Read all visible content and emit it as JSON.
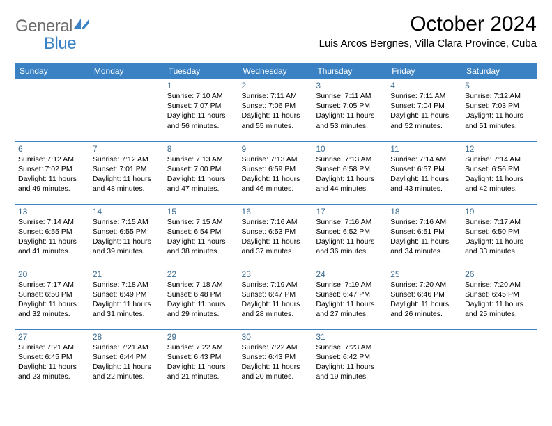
{
  "logo": {
    "text_general": "General",
    "text_blue": "Blue",
    "icon_color": "#3b82c4"
  },
  "title": "October 2024",
  "location": "Luis Arcos Bergnes, Villa Clara Province, Cuba",
  "colors": {
    "header_bg": "#3b82c4",
    "header_text": "#ffffff",
    "daynum": "#3b6b8f",
    "body_text": "#000000",
    "divider": "#3b82c4",
    "background": "#ffffff"
  },
  "typography": {
    "title_fontsize": 30,
    "location_fontsize": 15,
    "header_fontsize": 12,
    "daynum_fontsize": 12,
    "info_fontsize": 10.5
  },
  "day_headers": [
    "Sunday",
    "Monday",
    "Tuesday",
    "Wednesday",
    "Thursday",
    "Friday",
    "Saturday"
  ],
  "weeks": [
    [
      null,
      null,
      {
        "n": "1",
        "sr": "Sunrise: 7:10 AM",
        "ss": "Sunset: 7:07 PM",
        "d1": "Daylight: 11 hours",
        "d2": "and 56 minutes."
      },
      {
        "n": "2",
        "sr": "Sunrise: 7:11 AM",
        "ss": "Sunset: 7:06 PM",
        "d1": "Daylight: 11 hours",
        "d2": "and 55 minutes."
      },
      {
        "n": "3",
        "sr": "Sunrise: 7:11 AM",
        "ss": "Sunset: 7:05 PM",
        "d1": "Daylight: 11 hours",
        "d2": "and 53 minutes."
      },
      {
        "n": "4",
        "sr": "Sunrise: 7:11 AM",
        "ss": "Sunset: 7:04 PM",
        "d1": "Daylight: 11 hours",
        "d2": "and 52 minutes."
      },
      {
        "n": "5",
        "sr": "Sunrise: 7:12 AM",
        "ss": "Sunset: 7:03 PM",
        "d1": "Daylight: 11 hours",
        "d2": "and 51 minutes."
      }
    ],
    [
      {
        "n": "6",
        "sr": "Sunrise: 7:12 AM",
        "ss": "Sunset: 7:02 PM",
        "d1": "Daylight: 11 hours",
        "d2": "and 49 minutes."
      },
      {
        "n": "7",
        "sr": "Sunrise: 7:12 AM",
        "ss": "Sunset: 7:01 PM",
        "d1": "Daylight: 11 hours",
        "d2": "and 48 minutes."
      },
      {
        "n": "8",
        "sr": "Sunrise: 7:13 AM",
        "ss": "Sunset: 7:00 PM",
        "d1": "Daylight: 11 hours",
        "d2": "and 47 minutes."
      },
      {
        "n": "9",
        "sr": "Sunrise: 7:13 AM",
        "ss": "Sunset: 6:59 PM",
        "d1": "Daylight: 11 hours",
        "d2": "and 46 minutes."
      },
      {
        "n": "10",
        "sr": "Sunrise: 7:13 AM",
        "ss": "Sunset: 6:58 PM",
        "d1": "Daylight: 11 hours",
        "d2": "and 44 minutes."
      },
      {
        "n": "11",
        "sr": "Sunrise: 7:14 AM",
        "ss": "Sunset: 6:57 PM",
        "d1": "Daylight: 11 hours",
        "d2": "and 43 minutes."
      },
      {
        "n": "12",
        "sr": "Sunrise: 7:14 AM",
        "ss": "Sunset: 6:56 PM",
        "d1": "Daylight: 11 hours",
        "d2": "and 42 minutes."
      }
    ],
    [
      {
        "n": "13",
        "sr": "Sunrise: 7:14 AM",
        "ss": "Sunset: 6:55 PM",
        "d1": "Daylight: 11 hours",
        "d2": "and 41 minutes."
      },
      {
        "n": "14",
        "sr": "Sunrise: 7:15 AM",
        "ss": "Sunset: 6:55 PM",
        "d1": "Daylight: 11 hours",
        "d2": "and 39 minutes."
      },
      {
        "n": "15",
        "sr": "Sunrise: 7:15 AM",
        "ss": "Sunset: 6:54 PM",
        "d1": "Daylight: 11 hours",
        "d2": "and 38 minutes."
      },
      {
        "n": "16",
        "sr": "Sunrise: 7:16 AM",
        "ss": "Sunset: 6:53 PM",
        "d1": "Daylight: 11 hours",
        "d2": "and 37 minutes."
      },
      {
        "n": "17",
        "sr": "Sunrise: 7:16 AM",
        "ss": "Sunset: 6:52 PM",
        "d1": "Daylight: 11 hours",
        "d2": "and 36 minutes."
      },
      {
        "n": "18",
        "sr": "Sunrise: 7:16 AM",
        "ss": "Sunset: 6:51 PM",
        "d1": "Daylight: 11 hours",
        "d2": "and 34 minutes."
      },
      {
        "n": "19",
        "sr": "Sunrise: 7:17 AM",
        "ss": "Sunset: 6:50 PM",
        "d1": "Daylight: 11 hours",
        "d2": "and 33 minutes."
      }
    ],
    [
      {
        "n": "20",
        "sr": "Sunrise: 7:17 AM",
        "ss": "Sunset: 6:50 PM",
        "d1": "Daylight: 11 hours",
        "d2": "and 32 minutes."
      },
      {
        "n": "21",
        "sr": "Sunrise: 7:18 AM",
        "ss": "Sunset: 6:49 PM",
        "d1": "Daylight: 11 hours",
        "d2": "and 31 minutes."
      },
      {
        "n": "22",
        "sr": "Sunrise: 7:18 AM",
        "ss": "Sunset: 6:48 PM",
        "d1": "Daylight: 11 hours",
        "d2": "and 29 minutes."
      },
      {
        "n": "23",
        "sr": "Sunrise: 7:19 AM",
        "ss": "Sunset: 6:47 PM",
        "d1": "Daylight: 11 hours",
        "d2": "and 28 minutes."
      },
      {
        "n": "24",
        "sr": "Sunrise: 7:19 AM",
        "ss": "Sunset: 6:47 PM",
        "d1": "Daylight: 11 hours",
        "d2": "and 27 minutes."
      },
      {
        "n": "25",
        "sr": "Sunrise: 7:20 AM",
        "ss": "Sunset: 6:46 PM",
        "d1": "Daylight: 11 hours",
        "d2": "and 26 minutes."
      },
      {
        "n": "26",
        "sr": "Sunrise: 7:20 AM",
        "ss": "Sunset: 6:45 PM",
        "d1": "Daylight: 11 hours",
        "d2": "and 25 minutes."
      }
    ],
    [
      {
        "n": "27",
        "sr": "Sunrise: 7:21 AM",
        "ss": "Sunset: 6:45 PM",
        "d1": "Daylight: 11 hours",
        "d2": "and 23 minutes."
      },
      {
        "n": "28",
        "sr": "Sunrise: 7:21 AM",
        "ss": "Sunset: 6:44 PM",
        "d1": "Daylight: 11 hours",
        "d2": "and 22 minutes."
      },
      {
        "n": "29",
        "sr": "Sunrise: 7:22 AM",
        "ss": "Sunset: 6:43 PM",
        "d1": "Daylight: 11 hours",
        "d2": "and 21 minutes."
      },
      {
        "n": "30",
        "sr": "Sunrise: 7:22 AM",
        "ss": "Sunset: 6:43 PM",
        "d1": "Daylight: 11 hours",
        "d2": "and 20 minutes."
      },
      {
        "n": "31",
        "sr": "Sunrise: 7:23 AM",
        "ss": "Sunset: 6:42 PM",
        "d1": "Daylight: 11 hours",
        "d2": "and 19 minutes."
      },
      null,
      null
    ]
  ]
}
